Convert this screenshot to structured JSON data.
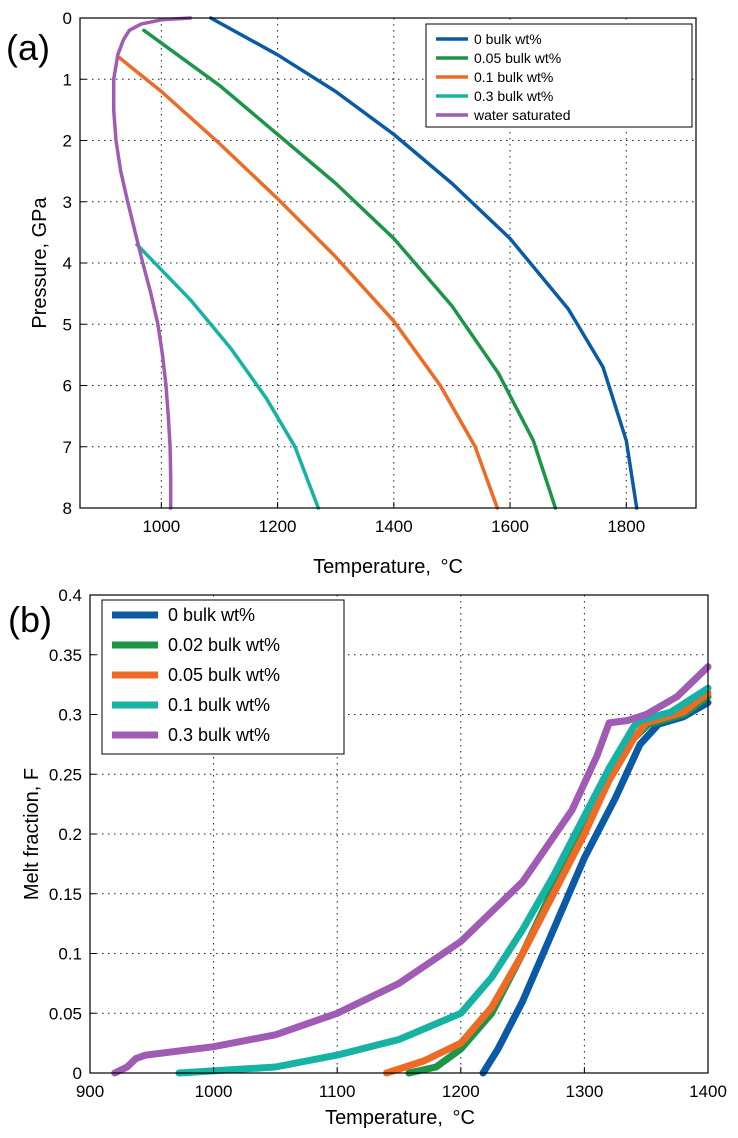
{
  "chart_data": [
    {
      "type": "line",
      "panel_label": "(a)",
      "xlabel": "Temperature,",
      "xlabel_unit": "°C",
      "ylabel": "Pressure, GPa",
      "xlim": [
        860,
        1920
      ],
      "ylim": [
        0,
        8
      ],
      "y_reversed": true,
      "xticks": [
        1000,
        1200,
        1400,
        1600,
        1800
      ],
      "yticks": [
        0,
        1,
        2,
        3,
        4,
        5,
        6,
        7,
        8
      ],
      "grid": true,
      "legend_position": "top-right",
      "series": [
        {
          "name": "0 bulk wt%",
          "color": "#0b5aa6",
          "points": [
            [
              1085,
              0
            ],
            [
              1200,
              0.6
            ],
            [
              1300,
              1.2
            ],
            [
              1400,
              1.9
            ],
            [
              1500,
              2.7
            ],
            [
              1600,
              3.6
            ],
            [
              1700,
              4.75
            ],
            [
              1760,
              5.7
            ],
            [
              1800,
              6.9
            ],
            [
              1818,
              8
            ]
          ]
        },
        {
          "name": "0.05 bulk wt%",
          "color": "#1c9646",
          "points": [
            [
              970,
              0.2
            ],
            [
              1100,
              1.1
            ],
            [
              1200,
              1.9
            ],
            [
              1300,
              2.7
            ],
            [
              1400,
              3.6
            ],
            [
              1500,
              4.7
            ],
            [
              1580,
              5.8
            ],
            [
              1640,
              6.9
            ],
            [
              1678,
              8
            ]
          ]
        },
        {
          "name": "0.1 bulk wt%",
          "color": "#ef6a25",
          "points": [
            [
              928,
              0.65
            ],
            [
              1000,
              1.2
            ],
            [
              1100,
              2.05
            ],
            [
              1200,
              2.95
            ],
            [
              1300,
              3.9
            ],
            [
              1400,
              4.95
            ],
            [
              1480,
              6.0
            ],
            [
              1540,
              7.0
            ],
            [
              1578,
              8
            ]
          ]
        },
        {
          "name": "0.3 bulk wt%",
          "color": "#16b2a4",
          "points": [
            [
              958,
              3.7
            ],
            [
              1050,
              4.6
            ],
            [
              1120,
              5.4
            ],
            [
              1180,
              6.2
            ],
            [
              1230,
              7.0
            ],
            [
              1270,
              8
            ]
          ]
        },
        {
          "name": "water saturated",
          "color": "#a05bb5",
          "points": [
            [
              1050,
              0
            ],
            [
              1000,
              0.03
            ],
            [
              965,
              0.1
            ],
            [
              945,
              0.2
            ],
            [
              935,
              0.35
            ],
            [
              925,
              0.6
            ],
            [
              918,
              1.0
            ],
            [
              918,
              1.5
            ],
            [
              922,
              2.0
            ],
            [
              930,
              2.5
            ],
            [
              942,
              3.0
            ],
            [
              955,
              3.5
            ],
            [
              968,
              4.0
            ],
            [
              982,
              4.5
            ],
            [
              994,
              5.0
            ],
            [
              1002,
              5.5
            ],
            [
              1008,
              6.0
            ],
            [
              1012,
              6.5
            ],
            [
              1015,
              7.0
            ],
            [
              1016,
              7.5
            ],
            [
              1016,
              8
            ]
          ]
        }
      ]
    },
    {
      "type": "line",
      "panel_label": "(b)",
      "xlabel": "Temperature,",
      "xlabel_unit": "°C",
      "ylabel": "Melt fraction, F",
      "xlim": [
        900,
        1400
      ],
      "ylim": [
        0,
        0.4
      ],
      "xticks": [
        900,
        1000,
        1100,
        1200,
        1300,
        1400
      ],
      "yticks": [
        "0",
        "0.05",
        "0.1",
        "0.15",
        "0.2",
        "0.25",
        "0.3",
        "0.35",
        "0.4"
      ],
      "grid": true,
      "legend_position": "top-left",
      "series": [
        {
          "name": "0 bulk wt%",
          "color": "#0b5aa6",
          "points": [
            [
              1218,
              0
            ],
            [
              1230,
              0.02
            ],
            [
              1250,
              0.06
            ],
            [
              1275,
              0.12
            ],
            [
              1300,
              0.18
            ],
            [
              1325,
              0.23
            ],
            [
              1345,
              0.275
            ],
            [
              1360,
              0.292
            ],
            [
              1380,
              0.298
            ],
            [
              1400,
              0.31
            ]
          ]
        },
        {
          "name": "0.02 bulk wt%",
          "color": "#1c9646",
          "points": [
            [
              1158,
              0
            ],
            [
              1180,
              0.005
            ],
            [
              1200,
              0.02
            ],
            [
              1225,
              0.05
            ],
            [
              1250,
              0.1
            ],
            [
              1275,
              0.155
            ],
            [
              1300,
              0.205
            ],
            [
              1320,
              0.245
            ],
            [
              1340,
              0.28
            ],
            [
              1352,
              0.292
            ],
            [
              1380,
              0.3
            ],
            [
              1400,
              0.315
            ]
          ]
        },
        {
          "name": "0.05 bulk wt%",
          "color": "#ef6a25",
          "points": [
            [
              1140,
              0
            ],
            [
              1170,
              0.01
            ],
            [
              1200,
              0.025
            ],
            [
              1225,
              0.055
            ],
            [
              1250,
              0.1
            ],
            [
              1275,
              0.15
            ],
            [
              1300,
              0.2
            ],
            [
              1320,
              0.245
            ],
            [
              1340,
              0.28
            ],
            [
              1350,
              0.293
            ],
            [
              1380,
              0.302
            ],
            [
              1400,
              0.318
            ]
          ]
        },
        {
          "name": "0.1 bulk wt%",
          "color": "#16b2a4",
          "points": [
            [
              972,
              0
            ],
            [
              1050,
              0.005
            ],
            [
              1100,
              0.015
            ],
            [
              1150,
              0.028
            ],
            [
              1200,
              0.05
            ],
            [
              1225,
              0.08
            ],
            [
              1250,
              0.12
            ],
            [
              1275,
              0.165
            ],
            [
              1300,
              0.215
            ],
            [
              1320,
              0.255
            ],
            [
              1340,
              0.29
            ],
            [
              1345,
              0.295
            ],
            [
              1370,
              0.302
            ],
            [
              1400,
              0.322
            ]
          ]
        },
        {
          "name": "0.3 bulk wt%",
          "color": "#a05bb5",
          "points": [
            [
              920,
              0
            ],
            [
              930,
              0.005
            ],
            [
              937,
              0.012
            ],
            [
              945,
              0.015
            ],
            [
              1000,
              0.022
            ],
            [
              1050,
              0.032
            ],
            [
              1100,
              0.05
            ],
            [
              1150,
              0.075
            ],
            [
              1200,
              0.11
            ],
            [
              1250,
              0.16
            ],
            [
              1290,
              0.22
            ],
            [
              1310,
              0.265
            ],
            [
              1320,
              0.293
            ],
            [
              1335,
              0.295
            ],
            [
              1350,
              0.3
            ],
            [
              1375,
              0.315
            ],
            [
              1400,
              0.34
            ]
          ]
        }
      ]
    }
  ]
}
